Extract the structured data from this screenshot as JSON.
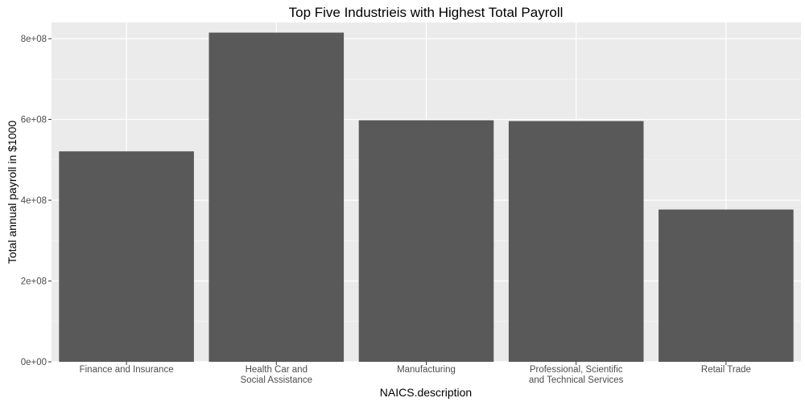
{
  "chart_data": {
    "type": "bar",
    "title": "Top Five Industrieis with Highest Total Payroll",
    "xlabel": "NAICS.description",
    "ylabel": "Total annual payroll in $1000",
    "categories": [
      "Finance and Insurance",
      "Health Car and\nSocial Assistance",
      "Manufacturing",
      "Professional, Scientific\nand Technical Services",
      "Retail Trade"
    ],
    "values": [
      521000000,
      815000000,
      598000000,
      596000000,
      377000000
    ],
    "ylim": [
      0,
      840000000
    ],
    "yticks": [
      0,
      200000000,
      400000000,
      600000000,
      800000000
    ],
    "ytick_labels": [
      "0e+00",
      "2e+08",
      "4e+08",
      "6e+08",
      "8e+08"
    ],
    "grid": true,
    "legend": "none",
    "colors": {
      "bar": "#595959",
      "panel": "#ebebeb",
      "grid_major": "#ffffff",
      "grid_minor": "#f5f5f5"
    }
  }
}
